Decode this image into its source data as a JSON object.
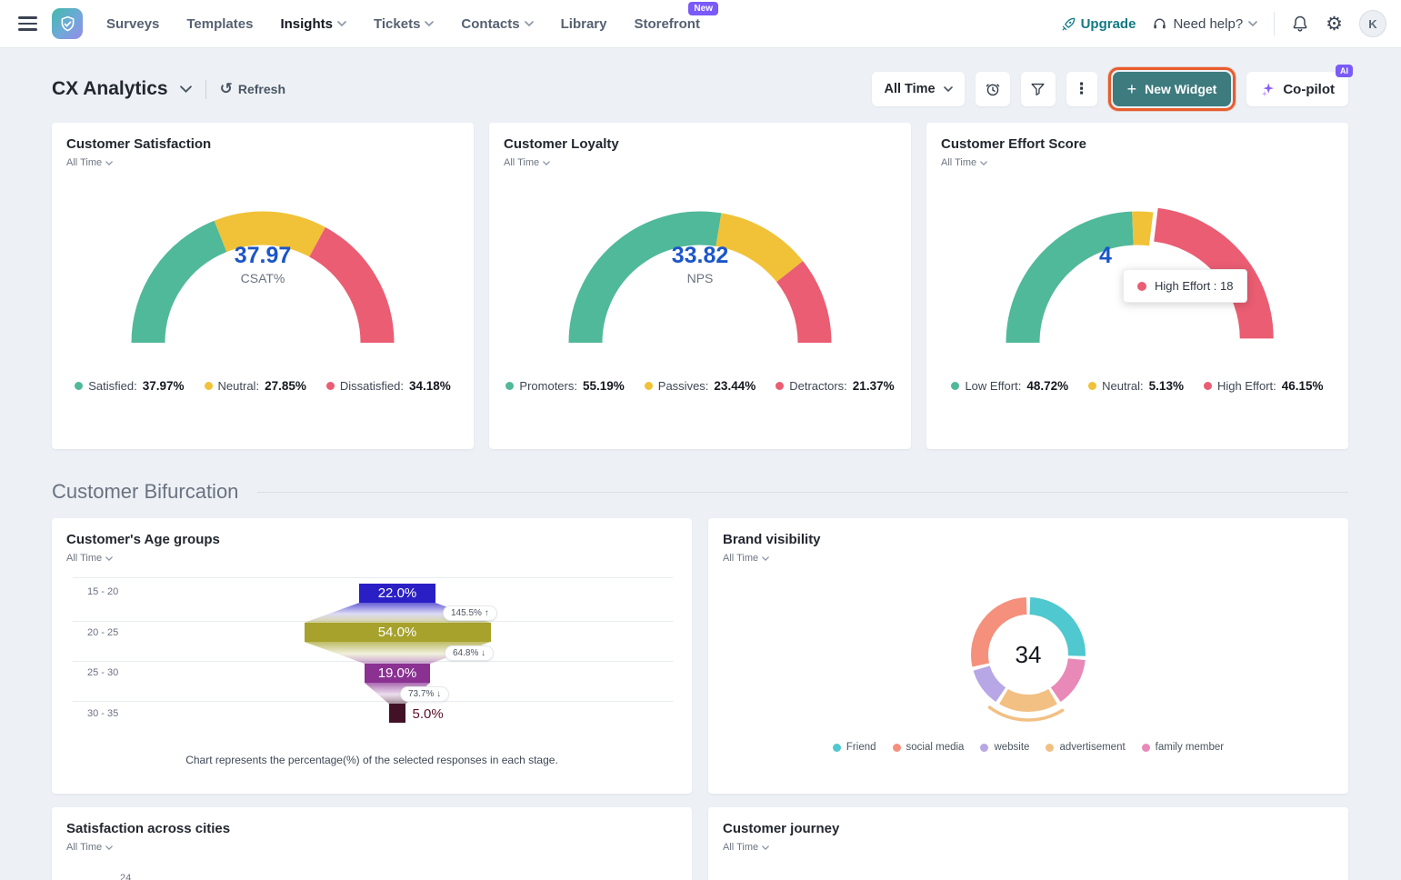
{
  "nav": {
    "items": [
      {
        "label": "Surveys",
        "chevron": false,
        "active": false
      },
      {
        "label": "Templates",
        "chevron": false,
        "active": false
      },
      {
        "label": "Insights",
        "chevron": true,
        "active": true
      },
      {
        "label": "Tickets",
        "chevron": true,
        "active": false
      },
      {
        "label": "Contacts",
        "chevron": true,
        "active": false
      },
      {
        "label": "Library",
        "chevron": false,
        "active": false
      },
      {
        "label": "Storefront",
        "chevron": false,
        "active": false,
        "badge": "New"
      }
    ],
    "upgrade_label": "Upgrade",
    "help_label": "Need help?",
    "avatar_initial": "K"
  },
  "header": {
    "title": "CX Analytics",
    "refresh_label": "Refresh",
    "time_filter": "All Time",
    "new_widget_label": "New Widget",
    "copilot_label": "Co-pilot",
    "copilot_badge": "AI",
    "accent_colors": {
      "new_widget_bg": "#3d7b7e",
      "highlight_ring": "#e85c2d",
      "badge_purple": "#7a5af8"
    }
  },
  "section": {
    "title": "Customer Bifurcation"
  },
  "chart_data": [
    {
      "id": "csat_gauge",
      "type": "gauge",
      "title": "Customer Satisfaction",
      "period": "All Time",
      "center_value": "37.97",
      "center_label": "CSAT%",
      "segments": [
        {
          "label": "Satisfied",
          "value": 37.97,
          "color": "#50b99a"
        },
        {
          "label": "Neutral",
          "value": 27.85,
          "color": "#f1c237"
        },
        {
          "label": "Dissatisfied",
          "value": 34.18,
          "color": "#ea5d72"
        }
      ]
    },
    {
      "id": "nps_gauge",
      "type": "gauge",
      "title": "Customer Loyalty",
      "period": "All Time",
      "center_value": "33.82",
      "center_label": "NPS",
      "segments": [
        {
          "label": "Promoters",
          "value": 55.19,
          "color": "#50b99a"
        },
        {
          "label": "Passives",
          "value": 23.44,
          "color": "#f1c237"
        },
        {
          "label": "Detractors",
          "value": 21.37,
          "color": "#ea5d72"
        }
      ]
    },
    {
      "id": "ces_gauge",
      "type": "gauge",
      "title": "Customer Effort Score",
      "period": "All Time",
      "center_value": "4",
      "center_label": "",
      "exploded": 2,
      "tooltip": {
        "text": "High Effort : 18",
        "color": "#ea5d72"
      },
      "segments": [
        {
          "label": "Low Effort",
          "value": 48.72,
          "color": "#50b99a"
        },
        {
          "label": "Neutral",
          "value": 5.13,
          "color": "#f1c237"
        },
        {
          "label": "High Effort",
          "value": 46.15,
          "color": "#ea5d72"
        }
      ]
    },
    {
      "id": "age_funnel",
      "type": "funnel",
      "title": "Customer's Age groups",
      "period": "All Time",
      "stages": [
        {
          "label": "15 - 20",
          "value": 22.0,
          "color": "#2a1fc5"
        },
        {
          "label": "20 - 25",
          "value": 54.0,
          "color": "#a6a22b"
        },
        {
          "label": "25 - 30",
          "value": 19.0,
          "color": "#8a3192"
        },
        {
          "label": "30 - 35",
          "value": 5.0,
          "color": "#421126"
        }
      ],
      "conversions": [
        "145.5% ↑",
        "64.8% ↓",
        "73.7% ↓"
      ],
      "caption": "Chart represents the percentage(%) of the selected responses in each stage."
    },
    {
      "id": "brand_donut",
      "type": "donut",
      "title": "Brand visibility",
      "period": "All Time",
      "center_value": "34",
      "segments": [
        {
          "label": "Friend",
          "value": 26,
          "color": "#4fc8cf"
        },
        {
          "label": "family member",
          "value": 15,
          "color": "#e989b7"
        },
        {
          "label": "advertisement",
          "value": 18,
          "color": "#f2c083",
          "highlight": true
        },
        {
          "label": "website",
          "value": 12,
          "color": "#b7a7e6"
        },
        {
          "label": "social media",
          "value": 29,
          "color": "#f5907d"
        }
      ],
      "legend_order": [
        0,
        4,
        3,
        2,
        1
      ]
    }
  ],
  "bottom_cards": [
    {
      "title": "Satisfaction across cities",
      "period": "All Time",
      "partial_label": "24"
    },
    {
      "title": "Customer journey",
      "period": "All Time"
    }
  ]
}
